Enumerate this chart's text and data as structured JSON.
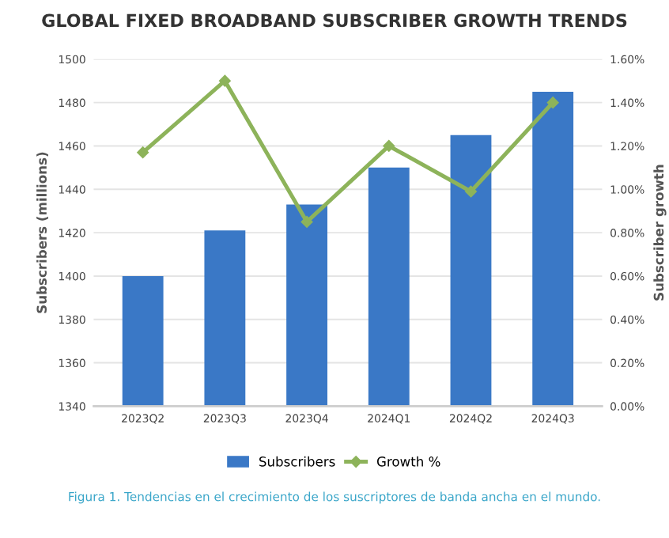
{
  "chart_data": {
    "type": "bar",
    "title": "GLOBAL FIXED BROADBAND SUBSCRIBER GROWTH TRENDS",
    "categories": [
      "2023Q2",
      "2023Q3",
      "2023Q4",
      "2024Q1",
      "2024Q2",
      "2024Q3"
    ],
    "series": [
      {
        "name": "Subscribers",
        "color": "#3a78c6",
        "values": [
          1400,
          1421,
          1433,
          1450,
          1465,
          1485
        ]
      },
      {
        "name": "Growth %",
        "type": "line",
        "axis": "y2",
        "color": "#8db35a",
        "marker": "diamond",
        "values": [
          1.17,
          1.5,
          0.85,
          1.2,
          0.99,
          1.4
        ]
      }
    ],
    "ylabel": "Subscribers (millions)",
    "y2label": "Subscriber growth",
    "ylim": [
      1340,
      1500
    ],
    "yticks": [
      1340,
      1360,
      1380,
      1400,
      1420,
      1440,
      1460,
      1480,
      1500
    ],
    "y2lim": [
      0,
      1.6
    ],
    "y2ticks": [
      {
        "value": 0,
        "label": "0.00%"
      },
      {
        "value": 0.2,
        "label": "0.20%"
      },
      {
        "value": 0.4,
        "label": "0.40%"
      },
      {
        "value": 0.6,
        "label": "0.60%"
      },
      {
        "value": 0.8,
        "label": "0.80%"
      },
      {
        "value": 1.0,
        "label": "1.00%"
      },
      {
        "value": 1.2,
        "label": "1.20%"
      },
      {
        "value": 1.4,
        "label": "1.40%"
      },
      {
        "value": 1.6,
        "label": "1.60%"
      }
    ],
    "grid": "y",
    "legend": "bottom",
    "annotations": [
      "Figura 1. Tendencias en el crecimiento de los suscriptores de banda ancha en el mundo."
    ]
  }
}
